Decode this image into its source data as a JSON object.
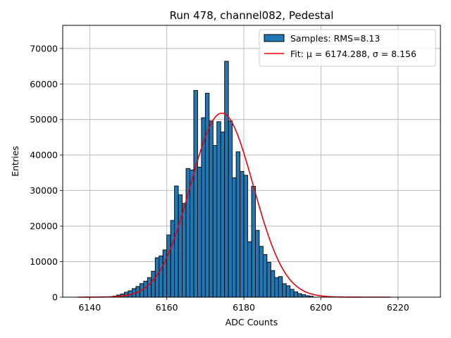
{
  "chart_data": {
    "type": "bar",
    "title": "Run 478, channel082, Pedestal",
    "xlabel": "ADC Counts",
    "ylabel": "Entries",
    "xlim": [
      6133,
      6231
    ],
    "ylim": [
      0,
      76500
    ],
    "xticks": [
      6140,
      6160,
      6180,
      6200,
      6220
    ],
    "yticks": [
      0,
      10000,
      20000,
      30000,
      40000,
      50000,
      60000,
      70000
    ],
    "grid": true,
    "legend_position": "top-right",
    "histogram": {
      "name": "Samples: RMS=8.13",
      "color": "#1f77b4",
      "bin_start": 6146,
      "bin_width": 1,
      "counts": [
        300,
        600,
        900,
        1400,
        1800,
        2400,
        3000,
        3800,
        4500,
        5500,
        7300,
        11100,
        11600,
        13300,
        17500,
        21600,
        31300,
        28800,
        26400,
        36200,
        35800,
        58200,
        36600,
        50500,
        57400,
        49600,
        42700,
        49400,
        46500,
        66400,
        49600,
        33600,
        40900,
        35400,
        34300,
        15600,
        31200,
        18800,
        14300,
        12000,
        9800,
        7500,
        5500,
        5800,
        3800,
        3200,
        2200,
        1500,
        1000,
        700,
        400,
        250
      ]
    },
    "fit": {
      "name": "Fit: μ = 6174.288, σ = 8.156",
      "color": "#e8000b",
      "mu": 6174.288,
      "sigma": 8.156,
      "amplitude": 51800,
      "x_range": [
        6137,
        6218
      ]
    }
  }
}
